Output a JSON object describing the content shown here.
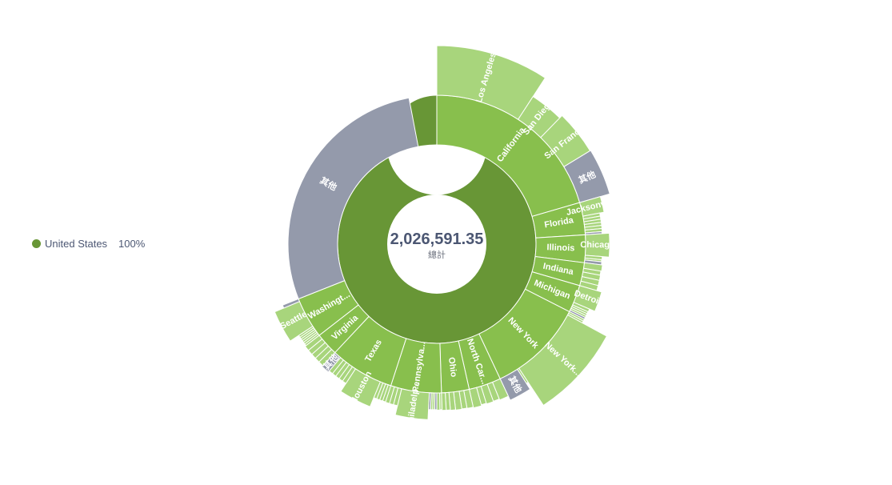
{
  "legend": {
    "label": "United States",
    "percent": "100%",
    "color": "#689636"
  },
  "center": {
    "total": "2,026,591.35",
    "caption": "總計"
  },
  "colors": {
    "level1": "#689636",
    "level2": "#88bf4d",
    "level3": "#a8d57c",
    "other": "#949aab",
    "stroke": "#ffffff"
  },
  "chart_data": {
    "type": "sunburst",
    "total": 2026591.35,
    "root": {
      "name": "United States",
      "value": 2026591.35,
      "share": 1.0
    },
    "states": [
      {
        "name": "California",
        "label": "California",
        "share": 0.205,
        "cities": [
          {
            "name": "Los Angeles",
            "label": "Los Angeles",
            "share": 0.092
          },
          {
            "name": "San Diego",
            "label": "San Diego",
            "share": 0.031
          },
          {
            "name": "San Francisco",
            "label": "San Franc...",
            "share": 0.04
          },
          {
            "name": "其他",
            "label": "其他",
            "share": 0.042,
            "other": true
          }
        ]
      },
      {
        "name": "Florida",
        "label": "Florida",
        "share": 0.035,
        "cities": [
          {
            "name": "Jacksonville",
            "label": "Jacksonvil...",
            "share": 0.015
          },
          {
            "name": "",
            "share": 0.003
          },
          {
            "name": "",
            "share": 0.003
          },
          {
            "name": "",
            "share": 0.003
          },
          {
            "name": "",
            "share": 0.003
          },
          {
            "name": "",
            "share": 0.003
          },
          {
            "name": "",
            "share": 0.003
          },
          {
            "name": "",
            "share": 0.002,
            "other": true
          }
        ]
      },
      {
        "name": "Illinois",
        "label": "Illinois",
        "share": 0.03,
        "cities": [
          {
            "name": "Chicago",
            "label": "Chicago",
            "share": 0.022
          },
          {
            "name": "",
            "share": 0.003
          },
          {
            "name": "",
            "share": 0.002
          },
          {
            "name": "",
            "share": 0.003,
            "other": true
          }
        ]
      },
      {
        "name": "Indiana",
        "label": "Indiana",
        "share": 0.025,
        "cities": [
          {
            "name": "",
            "share": 0.006
          },
          {
            "name": "",
            "share": 0.004
          },
          {
            "name": "",
            "share": 0.005
          },
          {
            "name": "",
            "share": 0.005
          },
          {
            "name": "",
            "share": 0.005
          }
        ]
      },
      {
        "name": "Michigan",
        "label": "Michigan",
        "share": 0.03,
        "cities": [
          {
            "name": "Detroit",
            "label": "Detroit",
            "share": 0.019
          },
          {
            "name": "",
            "share": 0.003
          },
          {
            "name": "",
            "share": 0.002
          },
          {
            "name": "",
            "share": 0.002
          },
          {
            "name": "",
            "share": 0.002
          },
          {
            "name": "",
            "share": 0.002,
            "other": true
          }
        ]
      },
      {
        "name": "New York",
        "label": "New York",
        "share": 0.105,
        "cities": [
          {
            "name": "",
            "share": 0.002
          },
          {
            "name": "",
            "share": 0.002
          },
          {
            "name": "New York City",
            "label": "New York...",
            "share": 0.078
          },
          {
            "name": "",
            "share": 0.002
          },
          {
            "name": "其他",
            "label": "其他",
            "share": 0.021,
            "other": true
          }
        ]
      },
      {
        "name": "North Carolina",
        "label": "North Car...",
        "share": 0.035,
        "cities": [
          {
            "name": "",
            "share": 0.009
          },
          {
            "name": "",
            "share": 0.006
          },
          {
            "name": "",
            "share": 0.007
          },
          {
            "name": "",
            "share": 0.005
          },
          {
            "name": "",
            "share": 0.008
          }
        ]
      },
      {
        "name": "Ohio",
        "label": "Ohio",
        "share": 0.03,
        "cities": [
          {
            "name": "",
            "share": 0.006
          },
          {
            "name": "",
            "share": 0.005
          },
          {
            "name": "",
            "share": 0.006
          },
          {
            "name": "",
            "share": 0.005
          },
          {
            "name": "",
            "share": 0.004
          },
          {
            "name": "",
            "share": 0.004
          }
        ]
      },
      {
        "name": "Pennsylvania",
        "label": "Pennsylva...",
        "share": 0.055,
        "cities": [
          {
            "name": "",
            "share": 0.002
          },
          {
            "name": "",
            "share": 0.003
          },
          {
            "name": "",
            "share": 0.002,
            "other": true
          },
          {
            "name": "",
            "share": 0.002
          },
          {
            "name": "",
            "share": 0.002
          },
          {
            "name": "",
            "share": 0.002,
            "other": true
          },
          {
            "name": "Philadelphia",
            "label": "Philadelp...",
            "share": 0.03
          },
          {
            "name": "",
            "share": 0.004
          },
          {
            "name": "",
            "share": 0.004
          },
          {
            "name": "",
            "share": 0.004
          }
        ]
      },
      {
        "name": "Texas",
        "label": "Texas",
        "share": 0.07,
        "cities": [
          {
            "name": "",
            "share": 0.003
          },
          {
            "name": "",
            "share": 0.003
          },
          {
            "name": "",
            "share": 0.003
          },
          {
            "name": "",
            "share": 0.003
          },
          {
            "name": "Houston",
            "label": "Houston",
            "share": 0.03
          },
          {
            "name": "",
            "share": 0.004
          },
          {
            "name": "",
            "share": 0.004
          },
          {
            "name": "",
            "share": 0.004
          },
          {
            "name": "",
            "share": 0.004
          },
          {
            "name": "",
            "share": 0.004
          },
          {
            "name": "其他",
            "label": "其他",
            "share": 0.008,
            "other": true
          }
        ]
      },
      {
        "name": "Virginia",
        "label": "Virginia",
        "share": 0.025,
        "cities": [
          {
            "name": "",
            "share": 0.005
          },
          {
            "name": "",
            "share": 0.005
          },
          {
            "name": "",
            "share": 0.005
          },
          {
            "name": "",
            "share": 0.005
          },
          {
            "name": "",
            "share": 0.005
          }
        ]
      },
      {
        "name": "Washington",
        "label": "Washingt...",
        "share": 0.045,
        "cities": [
          {
            "name": "",
            "share": 0.002
          },
          {
            "name": "",
            "share": 0.002
          },
          {
            "name": "",
            "share": 0.002
          },
          {
            "name": "",
            "share": 0.002
          },
          {
            "name": "",
            "share": 0.002
          },
          {
            "name": "",
            "share": 0.002
          },
          {
            "name": "Seattle",
            "label": "Seattle",
            "share": 0.03
          },
          {
            "name": "",
            "share": 0.003,
            "other": true
          }
        ]
      },
      {
        "name": "其他",
        "label": "其他",
        "share": 0.28,
        "other": true,
        "cities": []
      }
    ]
  }
}
